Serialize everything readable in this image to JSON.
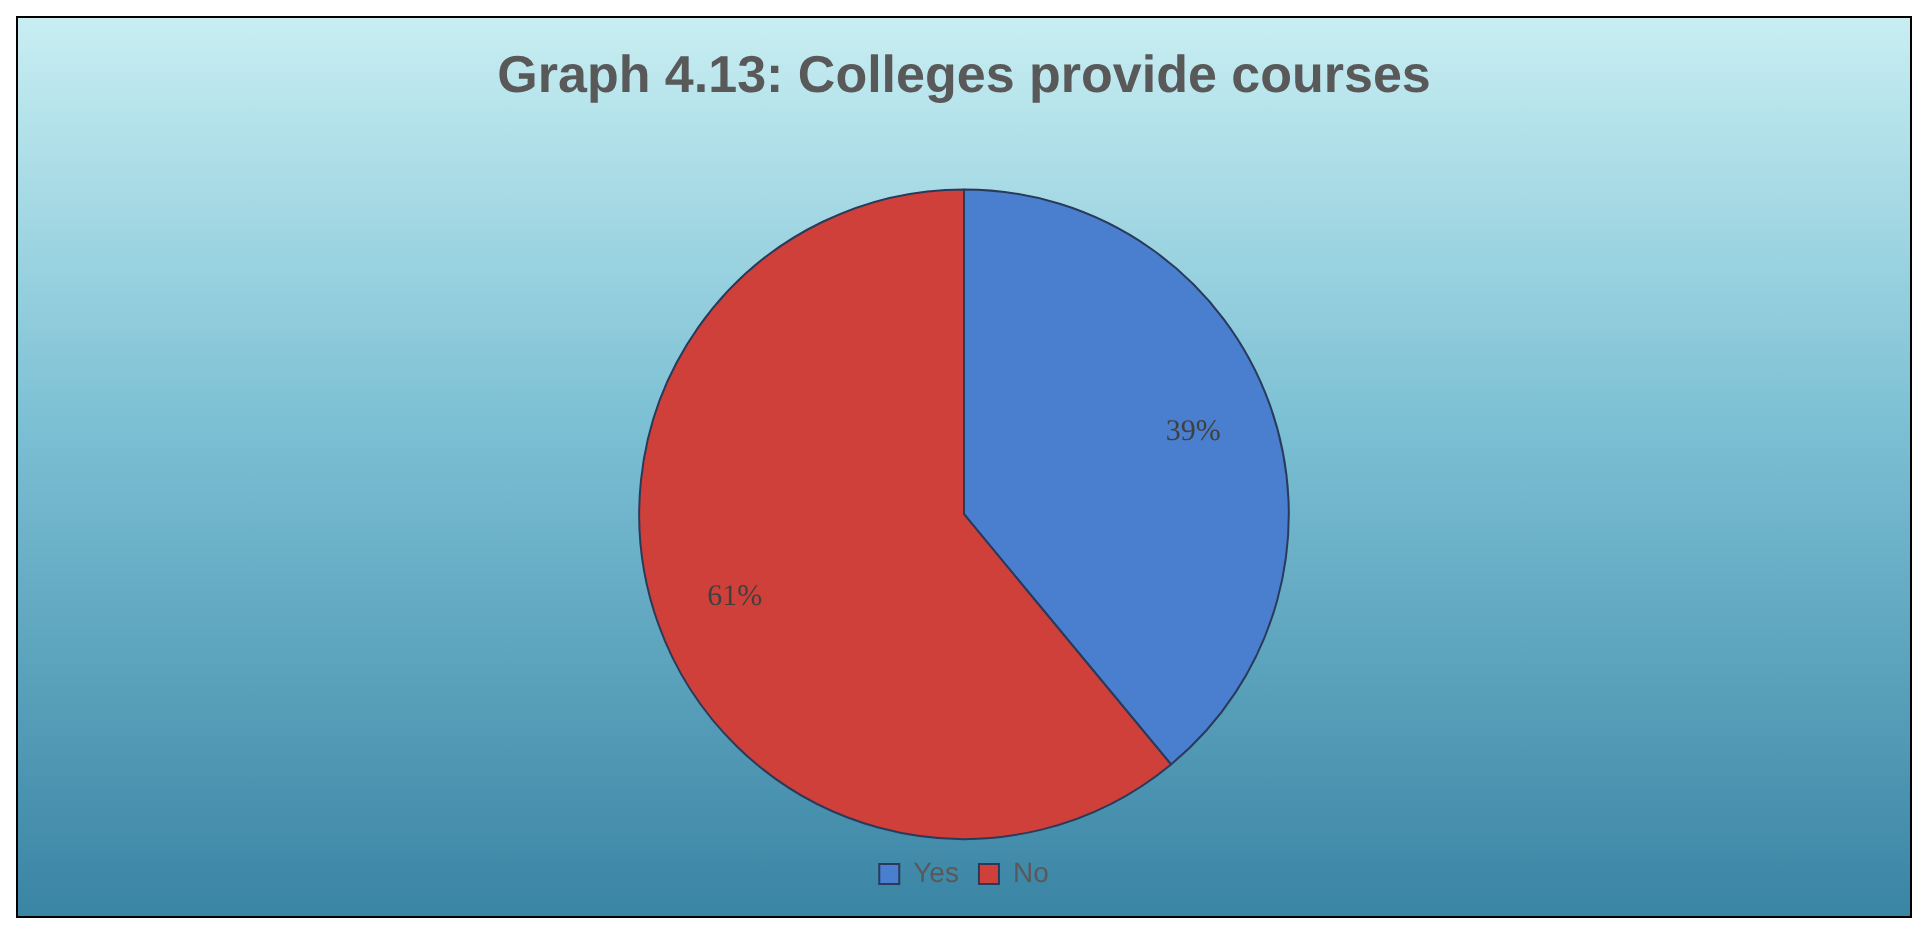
{
  "chart_data": {
    "type": "pie",
    "title": "Graph 4.13: Colleges provide courses",
    "categories": [
      "Yes",
      "No"
    ],
    "values": [
      39,
      61
    ],
    "colors": [
      "#4a7fd0",
      "#d0403a"
    ],
    "value_labels": [
      "39%",
      "61%"
    ],
    "legend": "bottom"
  }
}
